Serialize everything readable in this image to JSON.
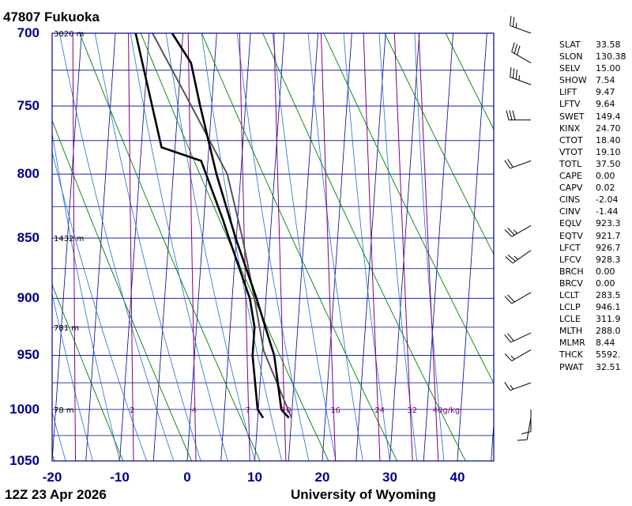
{
  "header": {
    "station": "47807  Fukuoka"
  },
  "footer": {
    "time": "12Z 23 Apr 2026",
    "source": "University of Wyoming"
  },
  "colors": {
    "frame": "#00008b",
    "isotherm": "#00008b",
    "dry_adiabat": "#008000",
    "moist_adiabat": "#1e6fd0",
    "mixing_ratio": "#800080",
    "temperature": "#000000",
    "dewpoint": "#000000",
    "parcel": "#555555"
  },
  "chart_data": {
    "type": "skew-t log-p sounding diagram",
    "pressure_axis": {
      "unit": "hPa",
      "range": [
        1050,
        700
      ],
      "scale": "log",
      "ticks": [
        "700",
        "750",
        "800",
        "850",
        "900",
        "950",
        "1000",
        "1050"
      ]
    },
    "temperature_axis": {
      "unit": "°C",
      "range": [
        -20,
        45
      ],
      "ticks": [
        "-20",
        "-10",
        "0",
        "10",
        "20",
        "30",
        "40"
      ]
    },
    "height_labels": [
      {
        "p": 700,
        "text": "3020 m"
      },
      {
        "p": 850,
        "text": "1432 m"
      },
      {
        "p": 925,
        "text": "781 m"
      },
      {
        "p": 1000,
        "text": "78 m"
      }
    ],
    "mixing_ratio_labels": [
      "2",
      "4",
      "7",
      "10",
      "16",
      "24",
      "32",
      "40g/kg"
    ],
    "mixing_ratio_lines": [
      0.4,
      1,
      2,
      4,
      7,
      10,
      16,
      24,
      32,
      40
    ],
    "temperature_profile": [
      {
        "p": 1008,
        "t": 14.6
      },
      {
        "p": 1000,
        "t": 13.4
      },
      {
        "p": 950,
        "t": 11.8
      },
      {
        "p": 925,
        "t": 10.2
      },
      {
        "p": 900,
        "t": 8.6
      },
      {
        "p": 850,
        "t": 4.9
      },
      {
        "p": 800,
        "t": 1.4
      },
      {
        "p": 750,
        "t": -1.7
      },
      {
        "p": 720,
        "t": -3.5
      },
      {
        "p": 700,
        "t": -6.6
      }
    ],
    "dewpoint_profile": [
      {
        "p": 1008,
        "td": 10.8
      },
      {
        "p": 1000,
        "td": 9.9
      },
      {
        "p": 950,
        "td": 8.6
      },
      {
        "p": 925,
        "td": 8.6
      },
      {
        "p": 900,
        "td": 7.6
      },
      {
        "p": 850,
        "td": 3.9
      },
      {
        "p": 835,
        "td": 2.8
      },
      {
        "p": 790,
        "td": -1.0
      },
      {
        "p": 780,
        "td": -7.0
      },
      {
        "p": 700,
        "td": -12.0
      }
    ],
    "parcel_profile": [
      {
        "p": 1008,
        "t": 15.0
      },
      {
        "p": 946,
        "t": 10.2
      },
      {
        "p": 900,
        "t": 8.3
      },
      {
        "p": 850,
        "t": 5.9
      },
      {
        "p": 800,
        "t": 3.0
      },
      {
        "p": 750,
        "t": -3.0
      },
      {
        "p": 700,
        "t": -9.5
      }
    ],
    "wind_barbs": [
      {
        "p": 700,
        "dir": 290,
        "kt": 25
      },
      {
        "p": 720,
        "dir": 300,
        "kt": 30
      },
      {
        "p": 735,
        "dir": 290,
        "kt": 35
      },
      {
        "p": 760,
        "dir": 270,
        "kt": 30
      },
      {
        "p": 790,
        "dir": 250,
        "kt": 20
      },
      {
        "p": 840,
        "dir": 240,
        "kt": 25
      },
      {
        "p": 860,
        "dir": 235,
        "kt": 25
      },
      {
        "p": 895,
        "dir": 240,
        "kt": 20
      },
      {
        "p": 930,
        "dir": 245,
        "kt": 20
      },
      {
        "p": 945,
        "dir": 240,
        "kt": 15
      },
      {
        "p": 975,
        "dir": 250,
        "kt": 15
      },
      {
        "p": 1000,
        "dir": 180,
        "kt": 10
      },
      {
        "p": 1008,
        "dir": 190,
        "kt": 10
      }
    ]
  },
  "indices": [
    {
      "name": "SLAT",
      "value": "33.58"
    },
    {
      "name": "SLON",
      "value": "130.38"
    },
    {
      "name": "SELV",
      "value": "15.00"
    },
    {
      "name": "SHOW",
      "value": "7.54"
    },
    {
      "name": "LIFT",
      "value": "9.47"
    },
    {
      "name": "LFTV",
      "value": "9.64"
    },
    {
      "name": "SWET",
      "value": "149.4"
    },
    {
      "name": "KINX",
      "value": "24.70"
    },
    {
      "name": "CTOT",
      "value": "18.40"
    },
    {
      "name": "VTOT",
      "value": "19.10"
    },
    {
      "name": "TOTL",
      "value": "37.50"
    },
    {
      "name": "CAPE",
      "value": "0.00"
    },
    {
      "name": "CAPV",
      "value": "0.02"
    },
    {
      "name": "CINS",
      "value": "-2.04"
    },
    {
      "name": "CINV",
      "value": "-1.44"
    },
    {
      "name": "EQLV",
      "value": "923.3"
    },
    {
      "name": "EQTV",
      "value": "921.7"
    },
    {
      "name": "LFCT",
      "value": "926.7"
    },
    {
      "name": "LFCV",
      "value": "928.3"
    },
    {
      "name": "BRCH",
      "value": "0.00"
    },
    {
      "name": "BRCV",
      "value": "0.00"
    },
    {
      "name": "LCLT",
      "value": "283.5"
    },
    {
      "name": "LCLP",
      "value": "946.1"
    },
    {
      "name": "LCLE",
      "value": "311.9"
    },
    {
      "name": "MLTH",
      "value": "288.0"
    },
    {
      "name": "MLMR",
      "value": "8.44"
    },
    {
      "name": "THCK",
      "value": "5592."
    },
    {
      "name": "PWAT",
      "value": "32.51"
    }
  ]
}
